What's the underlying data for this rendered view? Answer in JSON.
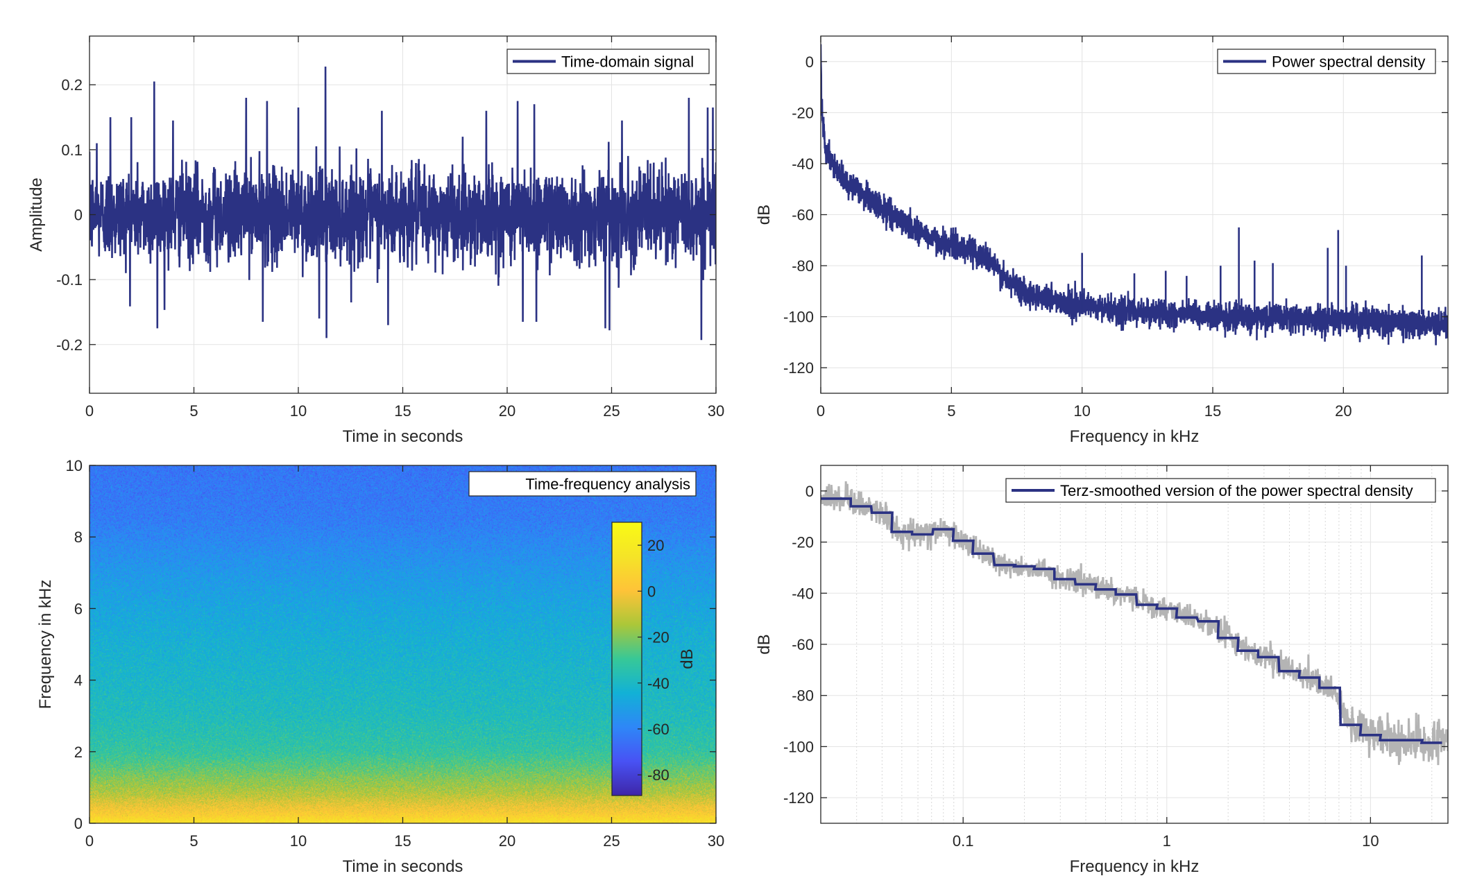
{
  "colors": {
    "signal": "#2b3283",
    "raw_psd": "#b4b4b4",
    "grid": "#e3e3e3",
    "axes": "#262626"
  },
  "chart_data": [
    {
      "type": "line",
      "legend": "Time-domain signal",
      "legend_position": "top-right",
      "xlabel": "Time in seconds",
      "ylabel": "Amplitude",
      "xlim": [
        0,
        30
      ],
      "ylim": [
        -0.275,
        0.275
      ],
      "xticks": [
        0,
        5,
        10,
        15,
        20,
        25,
        30
      ],
      "xticklabels": [
        "0",
        "5",
        "10",
        "15",
        "20",
        "25",
        "30"
      ],
      "yticks": [
        -0.2,
        -0.1,
        0,
        0.1,
        0.2
      ],
      "yticklabels": [
        "-0.2",
        "-0.1",
        "0",
        "0.1",
        "0.2"
      ],
      "grid": true,
      "noise_std": 0.035,
      "peaks": [
        [
          0.35,
          0.11
        ],
        [
          1.0,
          0.15
        ],
        [
          2.0,
          0.15
        ],
        [
          3.1,
          0.205
        ],
        [
          3.25,
          -0.175
        ],
        [
          4.0,
          0.145
        ],
        [
          7.5,
          0.18
        ],
        [
          8.3,
          -0.165
        ],
        [
          8.5,
          0.175
        ],
        [
          10.0,
          0.165
        ],
        [
          11.0,
          -0.16
        ],
        [
          11.3,
          0.228
        ],
        [
          11.35,
          -0.19
        ],
        [
          14.0,
          0.16
        ],
        [
          14.3,
          -0.17
        ],
        [
          19.0,
          0.16
        ],
        [
          20.5,
          0.175
        ],
        [
          20.75,
          -0.165
        ],
        [
          21.3,
          0.17
        ],
        [
          21.4,
          -0.165
        ],
        [
          24.7,
          -0.175
        ],
        [
          24.9,
          -0.178
        ],
        [
          25.5,
          0.145
        ],
        [
          28.7,
          0.18
        ],
        [
          29.3,
          -0.193
        ],
        [
          29.6,
          0.165
        ],
        [
          29.85,
          0.165
        ]
      ]
    },
    {
      "type": "line",
      "legend": "Power spectral density",
      "legend_position": "top-right",
      "xlabel": "Frequency in kHz",
      "ylabel": "dB",
      "xlim": [
        0,
        24
      ],
      "ylim": [
        -130,
        10
      ],
      "xticks": [
        0,
        5,
        10,
        15,
        20
      ],
      "xticklabels": [
        "0",
        "5",
        "10",
        "15",
        "20"
      ],
      "yticks": [
        -120,
        -100,
        -80,
        -60,
        -40,
        -20,
        0
      ],
      "yticklabels": [
        "-120",
        "-100",
        "-80",
        "-60",
        "-40",
        "-20",
        "0"
      ],
      "grid": true,
      "trend": {
        "freq_khz": [
          0,
          0.05,
          0.2,
          0.5,
          1,
          2,
          3,
          4,
          5,
          5.8,
          6.5,
          7,
          8,
          10,
          12,
          15,
          20,
          24
        ],
        "level_db": [
          5,
          -20,
          -35,
          -42,
          -47,
          -55,
          -62,
          -68,
          -72,
          -74,
          -78,
          -85,
          -91,
          -96,
          -98,
          -100,
          -101,
          -103
        ]
      },
      "spikes": [
        [
          10,
          -75
        ],
        [
          12,
          -83
        ],
        [
          13.2,
          -82
        ],
        [
          14,
          -84
        ],
        [
          15.3,
          -80
        ],
        [
          16.0,
          -65
        ],
        [
          16.6,
          -78
        ],
        [
          17.3,
          -79
        ],
        [
          19.4,
          -73
        ],
        [
          19.8,
          -66
        ],
        [
          20.1,
          -80
        ],
        [
          23.0,
          -76
        ]
      ]
    },
    {
      "type": "heatmap",
      "legend": "Time-frequency analysis",
      "legend_position": "top-right",
      "xlabel": "Time in seconds",
      "ylabel": "Frequency in kHz",
      "xlim": [
        0,
        30
      ],
      "ylim": [
        0,
        10
      ],
      "xticks": [
        0,
        5,
        10,
        15,
        20,
        25,
        30
      ],
      "xticklabels": [
        "0",
        "5",
        "10",
        "15",
        "20",
        "25",
        "30"
      ],
      "yticks": [
        0,
        2,
        4,
        6,
        8,
        10
      ],
      "yticklabels": [
        "0",
        "2",
        "4",
        "6",
        "8",
        "10"
      ],
      "colormap": "parula",
      "clim": [
        -89,
        30
      ],
      "colorbar": {
        "label": "dB",
        "ticks": [
          -80,
          -60,
          -40,
          -20,
          0,
          20
        ],
        "ticklabels": [
          "-80",
          "-60",
          "-40",
          "-20",
          "0",
          "20"
        ]
      },
      "frequency_profile": {
        "freq_khz": [
          0,
          0.3,
          0.8,
          1.5,
          2,
          3,
          4,
          5,
          6,
          6.8,
          7.5,
          8.5,
          10
        ],
        "level_db": [
          15,
          2,
          -12,
          -24,
          -32,
          -38,
          -41,
          -44,
          -48,
          -52,
          -56,
          -62,
          -64
        ]
      }
    },
    {
      "type": "line",
      "legend": "Terz-smoothed version of the power spectral density",
      "legend_position": "top-right",
      "xlabel": "Frequency in kHz",
      "ylabel": "dB",
      "xscale": "log",
      "xlim": [
        0.02,
        24
      ],
      "ylim": [
        -130,
        10
      ],
      "xticks": [
        0.1,
        1,
        10
      ],
      "xticklabels": [
        "0.1",
        "1",
        "10"
      ],
      "yticks": [
        -120,
        -100,
        -80,
        -60,
        -40,
        -20,
        0
      ],
      "yticklabels": [
        "-120",
        "-100",
        "-80",
        "-60",
        "-40",
        "-20",
        "0"
      ],
      "grid": true,
      "terz_bands": {
        "center_khz": [
          0.02,
          0.025,
          0.0315,
          0.04,
          0.05,
          0.063,
          0.08,
          0.1,
          0.125,
          0.16,
          0.2,
          0.25,
          0.315,
          0.4,
          0.5,
          0.63,
          0.8,
          1,
          1.25,
          1.6,
          2,
          2.5,
          3.15,
          4,
          5,
          6.3,
          8,
          10,
          12.5,
          16,
          20
        ],
        "level_db": [
          -3,
          -3,
          -6,
          -8.5,
          -16,
          -17,
          -15,
          -19.5,
          -24.5,
          -29,
          -29.5,
          -30.5,
          -34.5,
          -36.5,
          -38.5,
          -40.5,
          -44.5,
          -46,
          -49.5,
          -51,
          -57.5,
          -62.5,
          -65,
          -70.5,
          -73,
          -77,
          -91.5,
          -95.5,
          -97.5,
          -97.5,
          -98.5
        ]
      }
    }
  ]
}
